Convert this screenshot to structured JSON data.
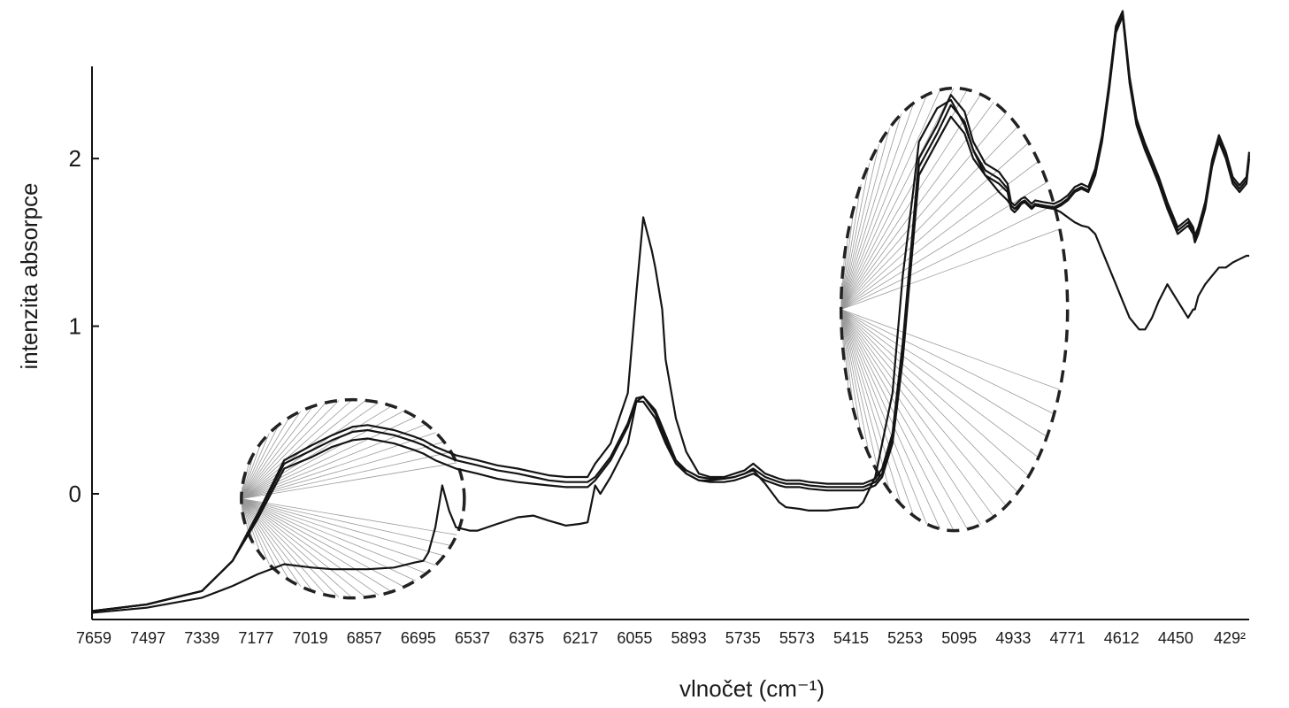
{
  "chart_data": {
    "type": "line",
    "title": "",
    "xlabel": "vlnočet (cm⁻¹)",
    "ylabel": "intenzita absorpce",
    "x_reversed": true,
    "xlim": [
      7659,
      4292
    ],
    "ylim": [
      -0.75,
      2.55
    ],
    "x_ticks": [
      "7659",
      "7497",
      "7339",
      "7177",
      "7019",
      "6857",
      "6695",
      "6537",
      "6375",
      "6217",
      "6055",
      "5893",
      "5735",
      "5573",
      "5415",
      "5253",
      "5095",
      "4933",
      "4771",
      "4612",
      "4450",
      "429²"
    ],
    "y_ticks": [
      0,
      1,
      2
    ],
    "grid": false,
    "legend": "none",
    "series": [
      {
        "x": [
          7659,
          7500,
          7339,
          7250,
          7177,
          7100,
          7019,
          6960,
          6900,
          6857,
          6780,
          6720,
          6695,
          6680,
          6660,
          6640,
          6620,
          6600,
          6560,
          6537,
          6480,
          6420,
          6375,
          6330,
          6280,
          6240,
          6217,
          6195,
          6180,
          6150,
          6100,
          6075,
          6055,
          6020,
          5990,
          5960,
          5930,
          5893,
          5860,
          5820,
          5790,
          5760,
          5735,
          5700,
          5660,
          5640,
          5600,
          5573,
          5520,
          5480,
          5430,
          5415,
          5380,
          5360,
          5330,
          5300,
          5270,
          5253,
          5200,
          5160,
          5120,
          5095,
          5060,
          5020,
          4995,
          4985,
          4975,
          4965,
          4955,
          4945,
          4935,
          4925,
          4915,
          4890,
          4860,
          4840,
          4820,
          4800,
          4780,
          4760,
          4740,
          4720,
          4700,
          4680,
          4660,
          4640,
          4620,
          4612,
          4595,
          4575,
          4555,
          4530,
          4500,
          4470,
          4455,
          4450,
          4440,
          4420,
          4400,
          4380,
          4360,
          4340,
          4320,
          4300,
          4292
        ],
        "y": [
          -0.71,
          -0.68,
          -0.62,
          -0.55,
          -0.48,
          -0.42,
          -0.44,
          -0.45,
          -0.45,
          -0.45,
          -0.44,
          -0.41,
          -0.4,
          -0.35,
          -0.2,
          0.05,
          -0.1,
          -0.2,
          -0.22,
          -0.22,
          -0.18,
          -0.14,
          -0.13,
          -0.16,
          -0.19,
          -0.18,
          -0.17,
          0.05,
          0.0,
          0.1,
          0.3,
          0.55,
          0.58,
          0.5,
          0.35,
          0.2,
          0.12,
          0.08,
          0.08,
          0.09,
          0.1,
          0.12,
          0.14,
          0.06,
          -0.05,
          -0.08,
          -0.09,
          -0.1,
          -0.1,
          -0.09,
          -0.08,
          -0.05,
          0.1,
          0.3,
          0.6,
          1.3,
          1.8,
          2.1,
          2.3,
          2.35,
          2.2,
          2.05,
          1.9,
          1.8,
          1.75,
          1.72,
          1.7,
          1.71,
          1.73,
          1.74,
          1.72,
          1.7,
          1.72,
          1.71,
          1.7,
          1.68,
          1.65,
          1.62,
          1.6,
          1.59,
          1.55,
          1.45,
          1.35,
          1.25,
          1.15,
          1.05,
          1.0,
          0.98,
          0.98,
          1.05,
          1.15,
          1.25,
          1.15,
          1.05,
          1.1,
          1.1,
          1.18,
          1.25,
          1.3,
          1.35,
          1.35,
          1.38,
          1.4,
          1.42,
          1.42
        ]
      },
      {
        "x": [
          7659,
          7500,
          7339,
          7250,
          7177,
          7100,
          7019,
          6960,
          6900,
          6857,
          6780,
          6720,
          6695,
          6660,
          6600,
          6537,
          6480,
          6420,
          6375,
          6330,
          6280,
          6240,
          6217,
          6195,
          6180,
          6150,
          6100,
          6075,
          6055,
          6020,
          5990,
          5960,
          5930,
          5893,
          5860,
          5820,
          5790,
          5760,
          5735,
          5700,
          5660,
          5640,
          5600,
          5573,
          5520,
          5480,
          5430,
          5415,
          5380,
          5360,
          5330,
          5300,
          5270,
          5253,
          5200,
          5160,
          5120,
          5095,
          5060,
          5020,
          4995,
          4985,
          4975,
          4965,
          4955,
          4945,
          4935,
          4925,
          4915,
          4890,
          4860,
          4840,
          4820,
          4800,
          4780,
          4760,
          4740,
          4720,
          4700,
          4680,
          4660,
          4640,
          4620,
          4612,
          4595,
          4575,
          4555,
          4530,
          4500,
          4470,
          4455,
          4450,
          4440,
          4420,
          4400,
          4380,
          4360,
          4340,
          4320,
          4300,
          4292
        ],
        "y": [
          -0.7,
          -0.66,
          -0.58,
          -0.4,
          -0.15,
          0.15,
          0.22,
          0.28,
          0.32,
          0.33,
          0.3,
          0.26,
          0.24,
          0.2,
          0.15,
          0.12,
          0.09,
          0.07,
          0.06,
          0.05,
          0.04,
          0.04,
          0.04,
          0.08,
          0.12,
          0.2,
          0.4,
          0.55,
          0.55,
          0.45,
          0.3,
          0.18,
          0.12,
          0.08,
          0.07,
          0.07,
          0.08,
          0.1,
          0.12,
          0.08,
          0.05,
          0.04,
          0.04,
          0.03,
          0.02,
          0.02,
          0.02,
          0.02,
          0.05,
          0.1,
          0.3,
          0.8,
          1.5,
          1.9,
          2.1,
          2.25,
          2.15,
          2.0,
          1.9,
          1.85,
          1.8,
          1.7,
          1.68,
          1.7,
          1.73,
          1.74,
          1.72,
          1.7,
          1.72,
          1.71,
          1.7,
          1.72,
          1.75,
          1.8,
          1.82,
          1.8,
          1.9,
          2.1,
          2.4,
          2.75,
          2.85,
          2.45,
          2.2,
          2.15,
          2.05,
          1.95,
          1.85,
          1.7,
          1.55,
          1.6,
          1.55,
          1.5,
          1.55,
          1.7,
          1.95,
          2.1,
          2.0,
          1.85,
          1.8,
          1.85,
          2.0
        ]
      },
      {
        "x": [
          7659,
          7500,
          7339,
          7250,
          7177,
          7100,
          7019,
          6960,
          6900,
          6857,
          6780,
          6720,
          6695,
          6660,
          6600,
          6537,
          6480,
          6420,
          6375,
          6330,
          6280,
          6240,
          6217,
          6195,
          6180,
          6150,
          6100,
          6075,
          6055,
          6020,
          5990,
          5960,
          5930,
          5893,
          5860,
          5820,
          5790,
          5760,
          5735,
          5700,
          5660,
          5640,
          5600,
          5573,
          5520,
          5480,
          5430,
          5415,
          5380,
          5360,
          5330,
          5300,
          5270,
          5253,
          5200,
          5160,
          5120,
          5095,
          5060,
          5020,
          4995,
          4985,
          4975,
          4965,
          4955,
          4945,
          4935,
          4925,
          4915,
          4890,
          4860,
          4840,
          4820,
          4800,
          4780,
          4760,
          4740,
          4720,
          4700,
          4680,
          4660,
          4640,
          4620,
          4612,
          4595,
          4575,
          4555,
          4530,
          4500,
          4470,
          4455,
          4450,
          4440,
          4420,
          4400,
          4380,
          4360,
          4340,
          4320,
          4300,
          4292
        ],
        "y": [
          -0.7,
          -0.66,
          -0.58,
          -0.4,
          -0.13,
          0.18,
          0.26,
          0.32,
          0.37,
          0.38,
          0.35,
          0.31,
          0.29,
          0.25,
          0.2,
          0.17,
          0.14,
          0.12,
          0.1,
          0.08,
          0.07,
          0.07,
          0.07,
          0.1,
          0.14,
          0.22,
          0.42,
          0.57,
          0.58,
          0.48,
          0.32,
          0.2,
          0.14,
          0.1,
          0.09,
          0.09,
          0.1,
          0.12,
          0.15,
          0.1,
          0.07,
          0.06,
          0.06,
          0.05,
          0.04,
          0.04,
          0.04,
          0.04,
          0.07,
          0.12,
          0.33,
          0.85,
          1.55,
          1.95,
          2.15,
          2.32,
          2.22,
          2.05,
          1.93,
          1.88,
          1.82,
          1.72,
          1.7,
          1.72,
          1.74,
          1.75,
          1.73,
          1.71,
          1.73,
          1.72,
          1.71,
          1.73,
          1.76,
          1.81,
          1.83,
          1.81,
          1.92,
          2.12,
          2.42,
          2.77,
          2.86,
          2.47,
          2.22,
          2.17,
          2.07,
          1.97,
          1.87,
          1.72,
          1.57,
          1.62,
          1.57,
          1.52,
          1.57,
          1.72,
          1.97,
          2.12,
          2.02,
          1.87,
          1.82,
          1.87,
          2.02
        ]
      },
      {
        "x": [
          7659,
          7500,
          7339,
          7250,
          7177,
          7100,
          7019,
          6960,
          6900,
          6857,
          6780,
          6720,
          6695,
          6660,
          6600,
          6537,
          6480,
          6420,
          6375,
          6330,
          6280,
          6240,
          6217,
          6195,
          6180,
          6150,
          6100,
          6075,
          6055,
          6030,
          6020,
          6000,
          5990,
          5960,
          5930,
          5893,
          5860,
          5820,
          5790,
          5760,
          5735,
          5700,
          5660,
          5640,
          5600,
          5573,
          5520,
          5480,
          5430,
          5415,
          5380,
          5360,
          5330,
          5300,
          5270,
          5253,
          5200,
          5160,
          5120,
          5095,
          5060,
          5020,
          4995,
          4985,
          4975,
          4965,
          4955,
          4945,
          4935,
          4925,
          4915,
          4890,
          4860,
          4840,
          4820,
          4800,
          4780,
          4760,
          4740,
          4720,
          4700,
          4680,
          4660,
          4640,
          4620,
          4612,
          4595,
          4575,
          4555,
          4530,
          4500,
          4470,
          4455,
          4450,
          4440,
          4420,
          4400,
          4380,
          4360,
          4340,
          4320,
          4300,
          4292
        ],
        "y": [
          -0.7,
          -0.66,
          -0.58,
          -0.4,
          -0.12,
          0.2,
          0.29,
          0.35,
          0.4,
          0.41,
          0.38,
          0.34,
          0.32,
          0.28,
          0.23,
          0.2,
          0.17,
          0.15,
          0.13,
          0.11,
          0.1,
          0.1,
          0.1,
          0.18,
          0.22,
          0.3,
          0.6,
          1.2,
          1.65,
          1.45,
          1.35,
          1.1,
          0.8,
          0.45,
          0.25,
          0.12,
          0.1,
          0.1,
          0.12,
          0.14,
          0.18,
          0.12,
          0.09,
          0.08,
          0.08,
          0.07,
          0.06,
          0.06,
          0.06,
          0.06,
          0.09,
          0.15,
          0.36,
          0.9,
          1.6,
          2.0,
          2.2,
          2.38,
          2.28,
          2.1,
          1.97,
          1.92,
          1.85,
          1.74,
          1.72,
          1.74,
          1.76,
          1.77,
          1.75,
          1.73,
          1.75,
          1.74,
          1.73,
          1.75,
          1.78,
          1.83,
          1.85,
          1.83,
          1.94,
          2.14,
          2.44,
          2.79,
          2.88,
          2.49,
          2.24,
          2.19,
          2.09,
          1.99,
          1.89,
          1.74,
          1.59,
          1.64,
          1.59,
          1.54,
          1.59,
          1.74,
          1.99,
          2.14,
          2.04,
          1.89,
          1.84,
          1.89,
          2.04
        ]
      }
    ],
    "annotations": [
      {
        "type": "dashed-ellipse",
        "x_center": 6900,
        "y_center": -0.03
      },
      {
        "type": "dashed-ellipse",
        "x_center": 5150,
        "y_center": 1.1
      }
    ]
  }
}
